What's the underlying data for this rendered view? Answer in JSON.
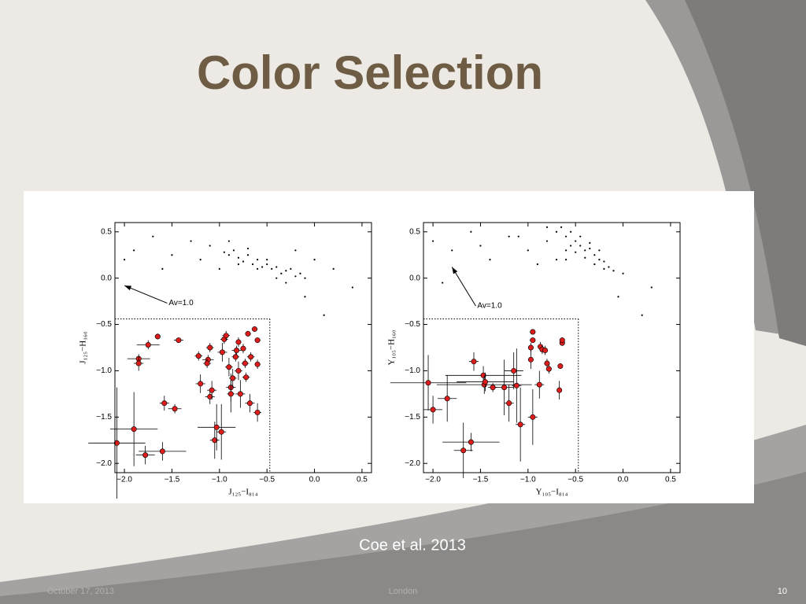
{
  "title": "Color Selection",
  "caption": "Coe et al. 2013",
  "footer": {
    "date": "October 17, 2013",
    "center": "London",
    "page": "10"
  },
  "chart_data": [
    {
      "type": "scatter",
      "xlabel": "J₁₂₅−I₈₁₄",
      "ylabel": "J₁₂₅−H₁₆₀",
      "xlim": [
        -2.1,
        0.6
      ],
      "ylim": [
        -2.1,
        0.6
      ],
      "xticks": [
        {
          "value": -2.0,
          "label": "−2.0"
        },
        {
          "value": -1.5,
          "label": "−1.5"
        },
        {
          "value": -1.0,
          "label": "−1.0"
        },
        {
          "value": -0.5,
          "label": "−0.5"
        },
        {
          "value": 0.0,
          "label": "0.0"
        },
        0.5
      ],
      "yticks": [
        {
          "value": -2.0,
          "label": "−2.0"
        },
        {
          "value": -1.5,
          "label": "−1.5"
        },
        {
          "value": -1.0,
          "label": "−1.0"
        },
        {
          "value": -0.5,
          "label": "−0.5"
        },
        {
          "value": 0.0,
          "label": "0.0"
        },
        0.5
      ],
      "selection": {
        "x_max": -0.47,
        "y_max": -0.44
      },
      "arrow": {
        "x": [
          -1.55,
          -2.0
        ],
        "y": [
          -0.27,
          -0.08
        ],
        "label": "Av=1.0"
      },
      "series": [
        {
          "color": "#000000",
          "x": [
            -1.9,
            -1.7,
            -1.5,
            -1.3,
            -1.1,
            -2.0,
            -1.6,
            -1.2,
            -0.95,
            -0.9,
            -0.85,
            -0.8,
            -0.75,
            -0.7,
            -0.65,
            -0.6,
            -0.55,
            -0.5,
            -0.45,
            -0.4,
            -0.35,
            -0.3,
            -0.25,
            -0.2,
            -0.15,
            -0.1,
            -0.7,
            -0.6,
            -0.5,
            -0.8,
            -0.4,
            -0.3,
            0.0,
            0.2,
            0.4,
            -0.2,
            -0.9,
            -1.0,
            -0.1,
            0.1
          ],
          "y": [
            0.3,
            0.45,
            0.25,
            0.4,
            0.35,
            0.2,
            0.1,
            0.2,
            0.28,
            0.25,
            0.3,
            0.22,
            0.18,
            0.25,
            0.15,
            0.2,
            0.12,
            0.15,
            0.1,
            0.12,
            0.05,
            0.08,
            0.1,
            0.02,
            0.05,
            0.0,
            0.32,
            0.1,
            0.2,
            0.15,
            0.0,
            -0.05,
            0.2,
            0.1,
            -0.1,
            0.3,
            0.4,
            0.1,
            -0.2,
            -0.4
          ]
        },
        {
          "color": "#dd1c1c",
          "x": [
            -2.08,
            -1.9,
            -1.78,
            -1.6,
            -1.58,
            -1.47,
            -1.85,
            -1.85,
            -1.75,
            -1.65,
            -1.43,
            -1.22,
            -1.2,
            -1.12,
            -1.13,
            -1.1,
            -1.1,
            -1.08,
            -1.05,
            -1.03,
            -0.98,
            -0.97,
            -0.95,
            -0.93,
            -0.9,
            -0.88,
            -0.88,
            -0.86,
            -0.83,
            -0.82,
            -0.8,
            -0.8,
            -0.78,
            -0.75,
            -0.73,
            -0.72,
            -0.7,
            -0.68,
            -0.67,
            -0.63,
            -0.6,
            -0.6,
            -0.6
          ],
          "y": [
            -1.78,
            -1.63,
            -1.91,
            -1.87,
            -1.35,
            -1.41,
            -0.87,
            -0.92,
            -0.72,
            -0.63,
            -0.67,
            -0.84,
            -1.14,
            -0.88,
            -0.92,
            -0.75,
            -1.28,
            -1.21,
            -1.75,
            -1.61,
            -1.66,
            -0.8,
            -0.66,
            -0.62,
            -0.96,
            -1.18,
            -1.25,
            -1.08,
            -0.85,
            -0.78,
            -0.69,
            -1.0,
            -1.25,
            -0.76,
            -0.92,
            -1.07,
            -0.6,
            -1.35,
            -0.85,
            -0.55,
            -0.67,
            -0.93,
            -1.45
          ],
          "xerr": [
            0.3,
            0.25,
            0.1,
            0.25,
            0.05,
            0.07,
            0.12,
            0.05,
            0.12,
            0.03,
            0.05,
            0.04,
            0.05,
            0.06,
            0.04,
            0.04,
            0.05,
            0.05,
            0.05,
            0.2,
            0.05,
            0.05,
            0.04,
            0.04,
            0.04,
            0.05,
            0.04,
            0.04,
            0.04,
            0.05,
            0.03,
            0.04,
            0.05,
            0.03,
            0.04,
            0.04,
            0.03,
            0.05,
            0.04,
            0.03,
            0.03,
            0.03,
            0.04
          ],
          "yerr": [
            0.6,
            0.4,
            0.1,
            0.1,
            0.08,
            0.05,
            0.05,
            0.08,
            0.05,
            0.03,
            0.03,
            0.05,
            0.1,
            0.05,
            0.05,
            0.05,
            0.08,
            0.1,
            0.2,
            0.25,
            0.3,
            0.1,
            0.05,
            0.05,
            0.1,
            0.15,
            0.2,
            0.1,
            0.05,
            0.05,
            0.05,
            0.1,
            0.15,
            0.05,
            0.05,
            0.05,
            0.03,
            0.1,
            0.05,
            0.03,
            0.03,
            0.05,
            0.1
          ]
        }
      ]
    },
    {
      "type": "scatter",
      "xlabel": "Y₁₀₅−I₈₁₄",
      "ylabel": "Y₁₀₅−H₁₆₀",
      "xlim": [
        -2.1,
        0.6
      ],
      "ylim": [
        -2.1,
        0.6
      ],
      "xticks": [
        {
          "value": -2.0,
          "label": "−2.0"
        },
        {
          "value": -1.5,
          "label": "−1.5"
        },
        {
          "value": -1.0,
          "label": "−1.0"
        },
        {
          "value": -0.5,
          "label": "−0.5"
        },
        {
          "value": 0.0,
          "label": "0.0"
        },
        0.5
      ],
      "yticks": [
        {
          "value": -2.0,
          "label": "−2.0"
        },
        {
          "value": -1.5,
          "label": "−1.5"
        },
        {
          "value": -1.0,
          "label": "−1.0"
        },
        {
          "value": -0.5,
          "label": "−0.5"
        },
        {
          "value": 0.0,
          "label": "0.0"
        },
        0.5
      ],
      "selection": {
        "x_max": -0.47,
        "y_max": -0.44
      },
      "arrow": {
        "x": [
          -1.55,
          -1.8
        ],
        "y": [
          -0.3,
          0.12
        ],
        "label": "Av=1.0"
      },
      "series": [
        {
          "color": "#000000",
          "x": [
            -2.0,
            -1.8,
            -1.6,
            -1.4,
            -1.2,
            -1.0,
            -1.9,
            -1.5,
            -0.8,
            -0.7,
            -0.65,
            -0.6,
            -0.55,
            -0.5,
            -0.45,
            -0.4,
            -0.35,
            -0.3,
            -0.25,
            -0.2,
            -0.15,
            -0.1,
            -0.5,
            -0.4,
            -0.3,
            -0.6,
            -0.7,
            -0.2,
            0.0,
            0.3,
            -0.9,
            -1.1,
            -0.45,
            -0.35,
            -0.55,
            -0.25,
            -0.05,
            0.2,
            -0.8,
            -0.6
          ],
          "y": [
            0.4,
            0.3,
            0.5,
            0.2,
            0.45,
            0.3,
            -0.05,
            0.35,
            0.4,
            0.5,
            0.55,
            0.45,
            0.5,
            0.4,
            0.35,
            0.3,
            0.32,
            0.25,
            0.2,
            0.18,
            0.12,
            0.08,
            0.28,
            0.22,
            0.15,
            0.3,
            0.2,
            0.1,
            0.05,
            -0.1,
            0.15,
            0.45,
            0.45,
            0.38,
            0.35,
            0.3,
            -0.2,
            -0.4,
            0.55,
            0.2
          ]
        },
        {
          "color": "#dd1c1c",
          "x": [
            -2.05,
            -2.0,
            -1.85,
            -1.68,
            -1.6,
            -1.57,
            -1.47,
            -1.46,
            -1.45,
            -1.37,
            -1.25,
            -1.2,
            -1.15,
            -1.12,
            -1.08,
            -0.97,
            -0.97,
            -0.95,
            -0.95,
            -0.95,
            -0.88,
            -0.87,
            -0.85,
            -0.82,
            -0.8,
            -0.78,
            -0.67,
            -0.66,
            -0.64,
            -0.64
          ],
          "y": [
            -1.13,
            -1.42,
            -1.3,
            -1.86,
            -1.77,
            -0.9,
            -1.05,
            -1.15,
            -1.12,
            -1.18,
            -1.18,
            -1.35,
            -1.0,
            -1.16,
            -1.58,
            -0.88,
            -0.75,
            -0.58,
            -0.67,
            -1.5,
            -1.15,
            -0.74,
            -0.77,
            -0.78,
            -0.92,
            -0.98,
            -1.21,
            -0.95,
            -0.7,
            -0.67
          ],
          "xerr": [
            0.4,
            0.1,
            0.1,
            0.1,
            0.3,
            0.05,
            0.4,
            0.5,
            0.3,
            0.05,
            0.1,
            0.05,
            0.1,
            0.05,
            0.05,
            0.03,
            0.03,
            0.03,
            0.03,
            0.05,
            0.05,
            0.03,
            0.03,
            0.03,
            0.03,
            0.03,
            0.02,
            0.02,
            0.02,
            0.02
          ],
          "yerr": [
            0.3,
            0.15,
            0.25,
            0.3,
            0.1,
            0.1,
            0.1,
            0.1,
            0.1,
            0.05,
            0.3,
            0.2,
            0.2,
            0.4,
            0.4,
            0.1,
            0.05,
            0.03,
            0.03,
            0.3,
            0.15,
            0.05,
            0.05,
            0.05,
            0.05,
            0.05,
            0.1,
            0.03,
            0.03,
            0.03
          ]
        }
      ]
    }
  ]
}
